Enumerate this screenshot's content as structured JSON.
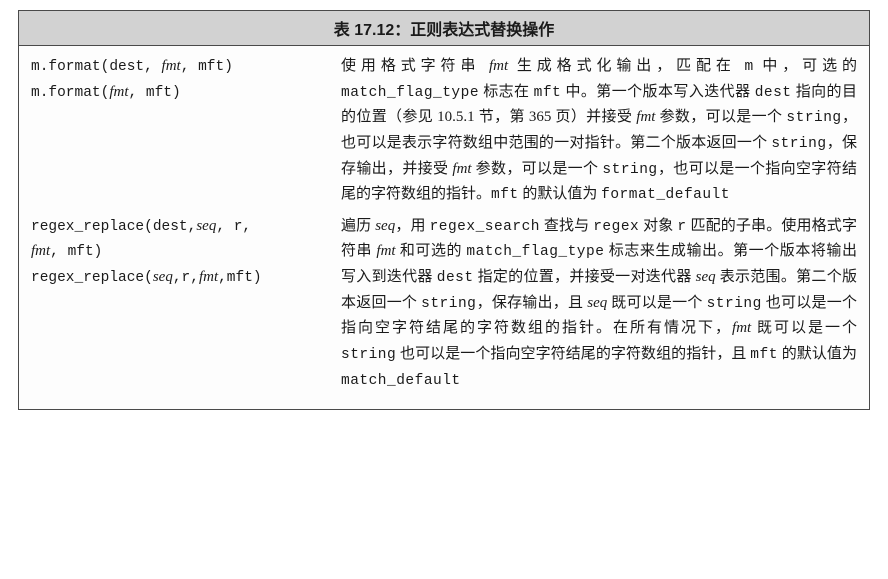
{
  "header": "表 17.12：正则表达式替换操作",
  "rows": [
    {
      "sig_html": "m.format(dest, <span class='sig-italic'>fmt</span>, mft)\nm.format(<span class='sig-italic'>fmt</span>, mft)",
      "desc_html": "使用格式字符串 <span class='ital'>fmt</span> 生成格式化输出，匹配在 <span class='mono'>m</span> 中，可选的 <span class='mono'>match_flag_type</span> 标志在 <span class='mono'>mft</span> 中。第一个版本写入迭代器 <span class='mono'>dest</span> 指向的目的位置（参见 10.5.1 节，第 365 页）并接受 <span class='ital'>fmt</span> 参数，可以是一个 <span class='mono'>string</span>，也可以是表示字符数组中范围的一对指针。第二个版本返回一个 <span class='mono'>string</span>，保存输出，并接受 <span class='ital'>fmt</span> 参数，可以是一个 <span class='mono'>string</span>，也可以是一个指向空字符结尾的字符数组的指针。<span class='mono'>mft</span> 的默认值为 <span class='mono'>format_default</span>"
    },
    {
      "sig_html": "regex_replace(dest,<span class='sig-italic'>seq</span>, r,\n<span class='sig-italic'>fmt</span>, mft)\nregex_replace(<span class='sig-italic'>seq</span>,r,<span class='sig-italic'>fmt</span>,mft)",
      "desc_html": "遍历 <span class='ital'>seq</span>，用 <span class='mono'>regex_search</span> 查找与 <span class='mono'>regex</span> 对象 <span class='mono'>r</span> 匹配的子串。使用格式字符串 <span class='ital'>fmt</span> 和可选的 <span class='mono'>match_flag_type</span> 标志来生成输出。第一个版本将输出写入到迭代器 <span class='mono'>dest</span> 指定的位置，并接受一对迭代器 <span class='ital'>seq</span> 表示范围。第二个版本返回一个 <span class='mono'>string</span>，保存输出，且 <span class='ital'>seq</span> 既可以是一个 <span class='mono'>string</span> 也可以是一个指向空字符结尾的字符数组的指针。在所有情况下，<span class='ital'>fmt</span> 既可以是一个 <span class='mono'>string</span> 也可以是一个指向空字符结尾的字符数组的指针，且 <span class='mono'>mft</span> 的默认值为 <span class='mono'>match_default</span>"
    }
  ]
}
